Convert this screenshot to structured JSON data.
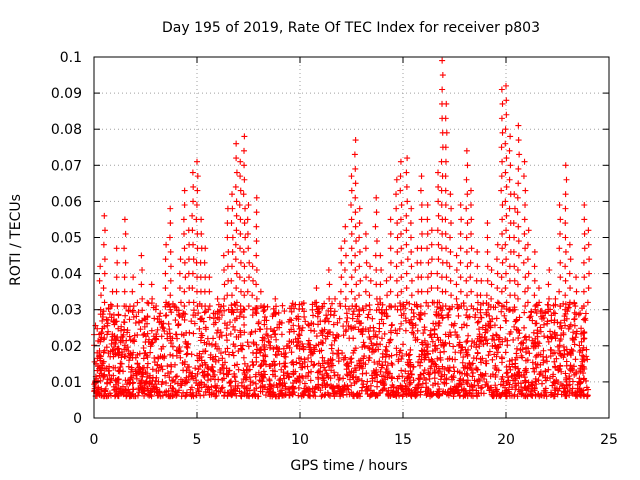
{
  "chart_data": {
    "type": "scatter",
    "title": "Day 195 of 2019, Rate Of TEC Index for receiver p803",
    "xlabel": "GPS time / hours",
    "ylabel": "ROTI / TECUs",
    "xlim": [
      0,
      25
    ],
    "ylim": [
      0,
      0.1
    ],
    "xticks": [
      0,
      5,
      10,
      15,
      20,
      25
    ],
    "xtick_labels": [
      "0",
      "5",
      "10",
      "15",
      "20",
      "25"
    ],
    "yticks": [
      0,
      0.01,
      0.02,
      0.03,
      0.04,
      0.05,
      0.06,
      0.07,
      0.08,
      0.09,
      0.1
    ],
    "ytick_labels": [
      "0",
      "0.01",
      "0.02",
      "0.03",
      "0.04",
      "0.05",
      "0.06",
      "0.07",
      "0.08",
      "0.09",
      "0.1"
    ],
    "grid": true,
    "marker": "+",
    "color": "#ff0000",
    "series": [
      {
        "x": [
          0.1,
          0.3,
          0.5,
          0.5,
          0.7,
          0.9,
          1.1,
          1.3,
          1.5,
          1.7,
          1.9,
          2.1,
          2.3,
          2.5,
          2.8,
          3.0,
          3.2,
          3.5,
          3.7,
          3.9,
          4.2,
          4.4,
          4.6,
          4.8,
          5.0,
          5.2,
          5.4,
          5.6,
          5.8,
          6.0,
          6.3,
          6.5,
          6.7,
          6.9,
          7.1,
          7.3,
          7.5,
          7.7,
          7.9,
          8.1,
          8.3,
          8.5,
          8.8,
          9.0,
          9.3,
          9.6,
          9.9,
          10.2,
          10.5,
          10.8,
          11.1,
          11.4,
          11.7,
          12.0,
          12.2,
          12.5,
          12.7,
          12.9,
          13.2,
          13.4,
          13.7,
          13.9,
          14.2,
          14.4,
          14.7,
          14.9,
          15.2,
          15.4,
          15.7,
          15.9,
          16.2,
          16.4,
          16.7,
          16.9,
          17.1,
          17.3,
          17.6,
          17.8,
          18.1,
          18.3,
          18.6,
          18.8,
          19.1,
          19.3,
          19.6,
          19.8,
          20.0,
          20.2,
          20.4,
          20.6,
          20.9,
          21.1,
          21.4,
          21.6,
          21.9,
          22.1,
          22.4,
          22.6,
          22.9,
          23.1,
          23.4,
          23.6,
          23.8,
          24.0
        ],
        "y": [
          0.015,
          0.042,
          0.056,
          0.012,
          0.018,
          0.035,
          0.047,
          0.021,
          0.055,
          0.016,
          0.039,
          0.023,
          0.045,
          0.018,
          0.037,
          0.022,
          0.014,
          0.048,
          0.058,
          0.031,
          0.044,
          0.063,
          0.052,
          0.068,
          0.071,
          0.055,
          0.047,
          0.039,
          0.029,
          0.033,
          0.045,
          0.058,
          0.062,
          0.076,
          0.071,
          0.078,
          0.059,
          0.042,
          0.061,
          0.035,
          0.028,
          0.021,
          0.033,
          0.026,
          0.018,
          0.031,
          0.022,
          0.028,
          0.019,
          0.036,
          0.024,
          0.041,
          0.033,
          0.047,
          0.053,
          0.067,
          0.077,
          0.058,
          0.051,
          0.042,
          0.061,
          0.045,
          0.038,
          0.055,
          0.066,
          0.071,
          0.072,
          0.058,
          0.047,
          0.067,
          0.059,
          0.052,
          0.068,
          0.099,
          0.087,
          0.062,
          0.045,
          0.059,
          0.074,
          0.063,
          0.046,
          0.038,
          0.054,
          0.041,
          0.048,
          0.091,
          0.092,
          0.078,
          0.062,
          0.081,
          0.071,
          0.052,
          0.046,
          0.036,
          0.029,
          0.041,
          0.033,
          0.059,
          0.07,
          0.048,
          0.039,
          0.029,
          0.059,
          0.052
        ]
      }
    ],
    "bulk_band": {
      "description_ranges": [
        [
          0,
          24,
          0.006,
          0.03
        ]
      ]
    }
  }
}
